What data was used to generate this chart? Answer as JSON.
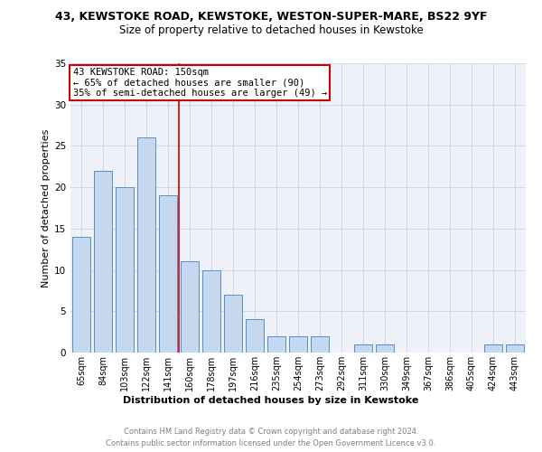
{
  "title1": "43, KEWSTOKE ROAD, KEWSTOKE, WESTON-SUPER-MARE, BS22 9YF",
  "title2": "Size of property relative to detached houses in Kewstoke",
  "xlabel": "Distribution of detached houses by size in Kewstoke",
  "ylabel": "Number of detached properties",
  "categories": [
    "65sqm",
    "84sqm",
    "103sqm",
    "122sqm",
    "141sqm",
    "160sqm",
    "178sqm",
    "197sqm",
    "216sqm",
    "235sqm",
    "254sqm",
    "273sqm",
    "292sqm",
    "311sqm",
    "330sqm",
    "349sqm",
    "367sqm",
    "386sqm",
    "405sqm",
    "424sqm",
    "443sqm"
  ],
  "values": [
    14,
    22,
    20,
    26,
    19,
    11,
    10,
    7,
    4,
    2,
    2,
    2,
    0,
    1,
    1,
    0,
    0,
    0,
    0,
    1,
    1
  ],
  "bar_color": "#c5d8f0",
  "bar_edge_color": "#5b8fc9",
  "property_line_x": 4.5,
  "annotation_line1": "43 KEWSTOKE ROAD: 150sqm",
  "annotation_line2": "← 65% of detached houses are smaller (90)",
  "annotation_line3": "35% of semi-detached houses are larger (49) →",
  "annotation_box_color": "#ffffff",
  "annotation_box_edge": "#cc0000",
  "vline_color": "#cc0000",
  "grid_color": "#d0d8e8",
  "bg_color": "#eef2f8",
  "footer1": "Contains HM Land Registry data © Crown copyright and database right 2024.",
  "footer2": "Contains public sector information licensed under the Open Government Licence v3.0.",
  "ylim": [
    0,
    35
  ],
  "yticks": [
    0,
    5,
    10,
    15,
    20,
    25,
    30,
    35
  ],
  "title1_fontsize": 9,
  "title2_fontsize": 8.5,
  "xlabel_fontsize": 8,
  "ylabel_fontsize": 8,
  "tick_fontsize": 7,
  "annot_fontsize": 7.5,
  "footer_fontsize": 6
}
